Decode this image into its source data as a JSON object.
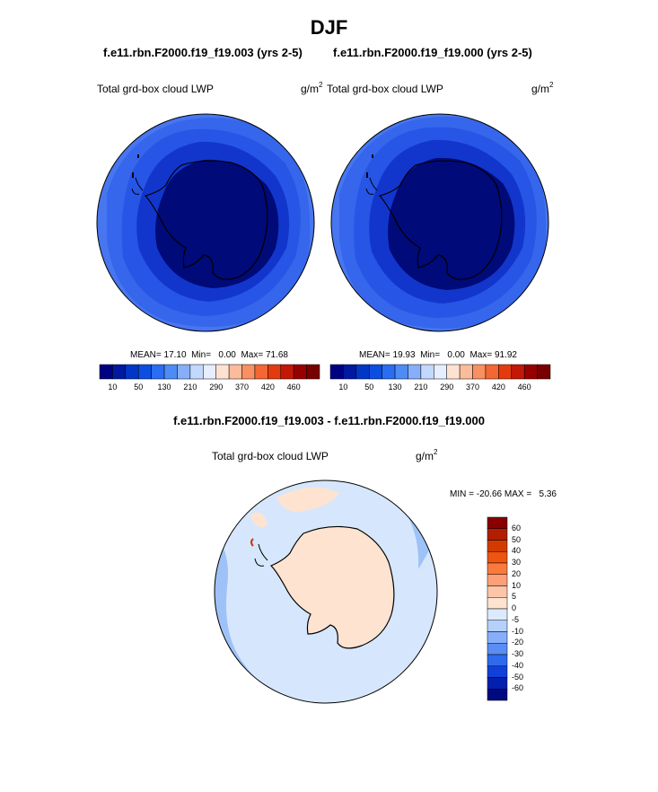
{
  "title": "DJF",
  "panels": [
    {
      "case": "f.e11.rbn.F2000.f19_f19.003 (yrs 2-5)",
      "variable": "Total grd-box cloud LWP",
      "units_base": "g/m",
      "units_exp": "2",
      "mean_label": "MEAN=",
      "mean": "17.10",
      "min_label": "Min=",
      "min": "0.00",
      "max_label": "Max=",
      "max": "71.68"
    },
    {
      "case": "f.e11.rbn.F2000.f19_f19.000 (yrs 2-5)",
      "variable": "Total grd-box cloud LWP",
      "units_base": "g/m",
      "units_exp": "2",
      "mean_label": "MEAN=",
      "mean": "19.93",
      "min_label": "Min=",
      "min": "0.00",
      "max_label": "Max=",
      "max": "91.92"
    }
  ],
  "colorbar_ticks": [
    "10",
    "50",
    "130",
    "210",
    "290",
    "370",
    "420",
    "460"
  ],
  "colorbar_colors": [
    "#000083",
    "#0019a0",
    "#0236c6",
    "#0c4ee0",
    "#2a6cf2",
    "#4f8bf5",
    "#86aefa",
    "#c3d8fd",
    "#e6eeff",
    "#fde2d2",
    "#fbbc9c",
    "#f99062",
    "#f46633",
    "#e43a10",
    "#c31707",
    "#980000",
    "#780000"
  ],
  "difference": {
    "case": "f.e11.rbn.F2000.f19_f19.003 - f.e11.rbn.F2000.f19_f19.000",
    "variable": "Total grd-box cloud LWP",
    "units_base": "g/m",
    "units_exp": "2",
    "min_label": "MIN =",
    "min": "-20.66",
    "max_label": "MAX =",
    "max": "5.36",
    "colorbar_ticks": [
      "60",
      "50",
      "40",
      "30",
      "20",
      "10",
      "5",
      "0",
      "-5",
      "-10",
      "-20",
      "-30",
      "-40",
      "-50",
      "-60"
    ],
    "colorbar_colors": [
      "#880000",
      "#b21e00",
      "#d43a00",
      "#ee5510",
      "#fa7a3e",
      "#fca07a",
      "#fdc5a8",
      "#fde3d0",
      "#dceaff",
      "#b5d0fb",
      "#86aefa",
      "#5a8ef4",
      "#2f6aee",
      "#1040d8",
      "#0220ad",
      "#000a80"
    ]
  },
  "colors": {
    "ocean_mid": "#2755e6",
    "ocean_inner": "#1236cc",
    "ice_core": "#000a78",
    "outer_band": "#3f6fee",
    "diff_bg": "#d6e7fd",
    "diff_blue": "#9ec2f8",
    "diff_orange": "#fde3d0"
  }
}
